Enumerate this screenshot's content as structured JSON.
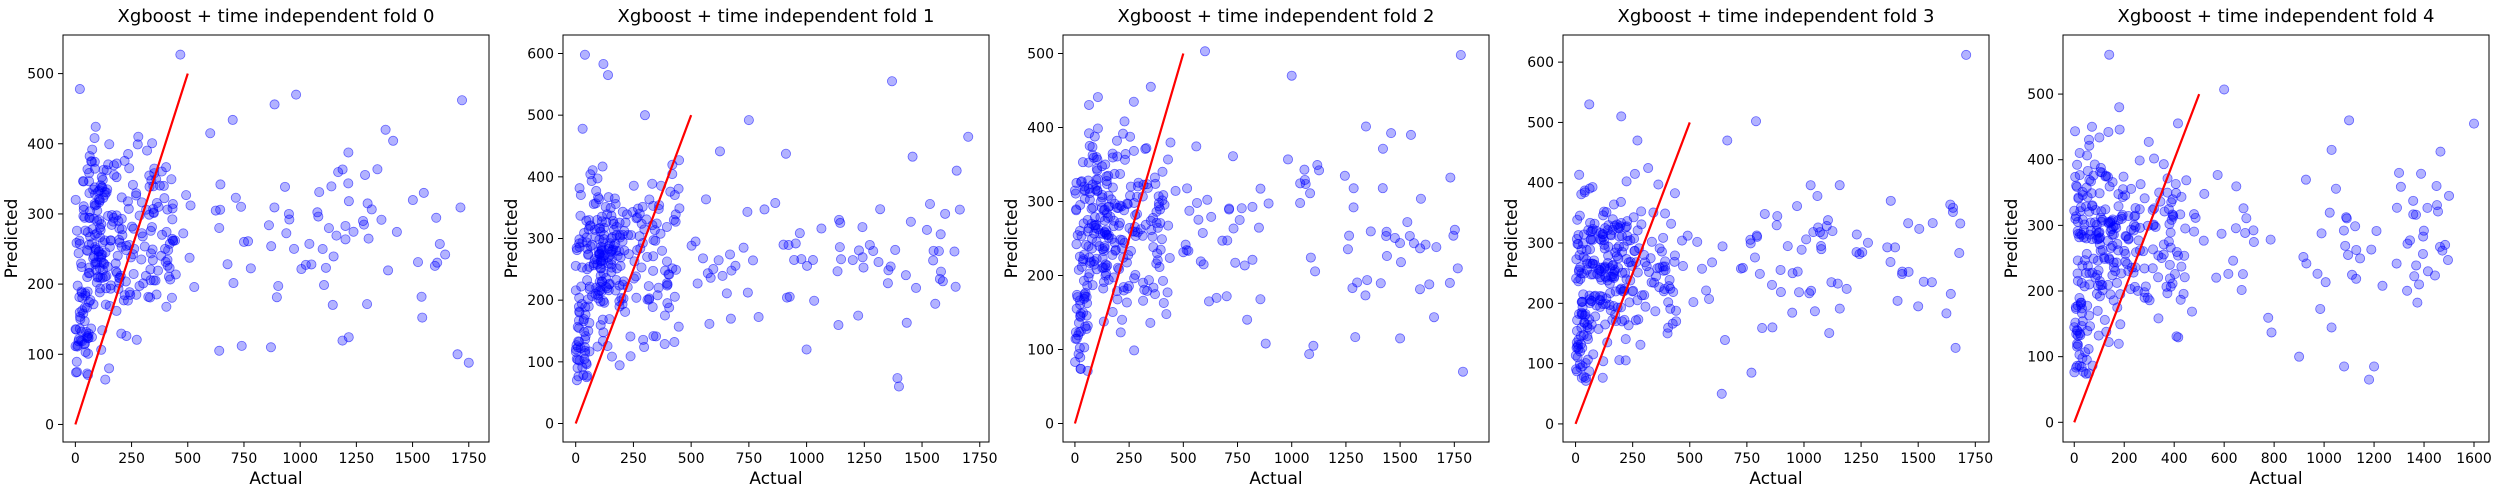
{
  "figure": {
    "point_color": "#0000ff",
    "point_alpha": 0.3,
    "line_color": "#ff0000",
    "grid": false,
    "legend": "none"
  },
  "chart_data": [
    {
      "type": "scatter",
      "title": "Xgboost + time independent fold 0",
      "xlabel": "Actual",
      "ylabel": "Predicted",
      "xlim": [
        -55,
        1840
      ],
      "ylim": [
        -25,
        555
      ],
      "xticks": [
        0,
        250,
        500,
        750,
        1000,
        1250,
        1500,
        1750
      ],
      "yticks": [
        0,
        100,
        200,
        300,
        400,
        500
      ],
      "reference_line": [
        [
          0,
          0
        ],
        [
          500,
          500
        ]
      ],
      "seed": 11,
      "points": [
        [
          467,
          527
        ],
        [
          20,
          478
        ],
        [
          1720,
          462
        ],
        [
          1700,
          100
        ],
        [
          1750,
          88
        ],
        [
          1540,
          182
        ],
        [
          1380,
          420
        ],
        [
          1550,
          330
        ],
        [
          870,
          110
        ],
        [
          740,
          112
        ],
        [
          600,
          415
        ],
        [
          280,
          410
        ],
        [
          640,
          105
        ],
        [
          150,
          80
        ],
        [
          640,
          280
        ],
        [
          700,
          434
        ],
        [
          1050,
          228
        ],
        [
          1100,
          250
        ],
        [
          950,
          300
        ],
        [
          1300,
          315
        ]
      ]
    },
    {
      "type": "scatter",
      "title": "Xgboost + time independent fold 1",
      "xlabel": "Actual",
      "ylabel": "Predicted",
      "xlim": [
        -55,
        1790
      ],
      "ylim": [
        -30,
        630
      ],
      "xticks": [
        0,
        250,
        500,
        750,
        1000,
        1250,
        1500,
        1750
      ],
      "yticks": [
        0,
        100,
        200,
        300,
        400,
        500,
        600
      ],
      "reference_line": [
        [
          0,
          0
        ],
        [
          500,
          500
        ]
      ],
      "seed": 23,
      "points": [
        [
          40,
          598
        ],
        [
          120,
          583
        ],
        [
          140,
          565
        ],
        [
          1370,
          555
        ],
        [
          1650,
          410
        ],
        [
          1700,
          465
        ],
        [
          1400,
          60
        ],
        [
          1000,
          120
        ],
        [
          750,
          492
        ],
        [
          1550,
          280
        ],
        [
          1200,
          265
        ],
        [
          900,
          290
        ],
        [
          300,
          500
        ],
        [
          30,
          478
        ],
        [
          1600,
          340
        ]
      ]
    },
    {
      "type": "scatter",
      "title": "Xgboost + time independent fold 2",
      "xlabel": "Actual",
      "ylabel": "Predicted",
      "xlim": [
        -55,
        1910
      ],
      "ylim": [
        -25,
        525
      ],
      "xticks": [
        0,
        250,
        500,
        750,
        1000,
        1250,
        1500,
        1750
      ],
      "yticks": [
        0,
        100,
        200,
        300,
        400,
        500
      ],
      "reference_line": [
        [
          0,
          0
        ],
        [
          500,
          500
        ]
      ],
      "seed": 37,
      "points": [
        [
          1780,
          498
        ],
        [
          1790,
          70
        ],
        [
          1500,
          115
        ],
        [
          1280,
          183
        ],
        [
          600,
          503
        ],
        [
          1420,
          318
        ],
        [
          1550,
          390
        ],
        [
          1100,
          105
        ],
        [
          880,
          108
        ],
        [
          1000,
          470
        ],
        [
          350,
          455
        ],
        [
          760,
          275
        ]
      ]
    },
    {
      "type": "scatter",
      "title": "Xgboost + time independent fold 3",
      "xlabel": "Actual",
      "ylabel": "Predicted",
      "xlim": [
        -55,
        1810
      ],
      "ylim": [
        -30,
        645
      ],
      "xticks": [
        0,
        250,
        500,
        750,
        1000,
        1250,
        1500,
        1750
      ],
      "yticks": [
        0,
        100,
        200,
        300,
        400,
        500,
        600
      ],
      "reference_line": [
        [
          0,
          0
        ],
        [
          500,
          500
        ]
      ],
      "seed": 51,
      "points": [
        [
          1710,
          612
        ],
        [
          1560,
          235
        ],
        [
          1500,
          195
        ],
        [
          1380,
          370
        ],
        [
          790,
          502
        ],
        [
          1230,
          285
        ],
        [
          1120,
          235
        ],
        [
          950,
          250
        ],
        [
          770,
          85
        ],
        [
          640,
          50
        ],
        [
          60,
          530
        ],
        [
          200,
          510
        ]
      ]
    },
    {
      "type": "scatter",
      "title": "Xgboost + time independent fold 4",
      "xlabel": "Actual",
      "ylabel": "Predicted",
      "xlim": [
        -45,
        1660
      ],
      "ylim": [
        -30,
        590
      ],
      "xticks": [
        0,
        200,
        400,
        600,
        800,
        1000,
        1200,
        1400,
        1600
      ],
      "yticks": [
        0,
        100,
        200,
        300,
        400,
        500
      ],
      "reference_line": [
        [
          0,
          0
        ],
        [
          500,
          500
        ]
      ],
      "seed": 67,
      "points": [
        [
          140,
          560
        ],
        [
          600,
          507
        ],
        [
          1600,
          455
        ],
        [
          1100,
          460
        ],
        [
          1030,
          415
        ],
        [
          1200,
          85
        ],
        [
          1080,
          85
        ],
        [
          1180,
          65
        ],
        [
          900,
          100
        ],
        [
          1380,
          210
        ],
        [
          1450,
          360
        ],
        [
          1500,
          345
        ],
        [
          1300,
          380
        ],
        [
          340,
          350
        ],
        [
          180,
          480
        ]
      ]
    }
  ]
}
